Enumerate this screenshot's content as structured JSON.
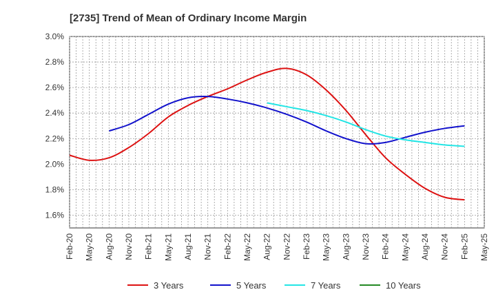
{
  "chart_data": {
    "type": "line",
    "title": "[2735]  Trend of Mean of Ordinary Income Margin",
    "xlabel": "",
    "ylabel": "",
    "ylim": [
      1.5,
      3.0
    ],
    "yticks": [
      "1.6%",
      "1.8%",
      "2.0%",
      "2.2%",
      "2.4%",
      "2.6%",
      "2.8%",
      "3.0%"
    ],
    "ytick_values": [
      1.6,
      1.8,
      2.0,
      2.2,
      2.4,
      2.6,
      2.8,
      3.0
    ],
    "xticks": [
      "Feb-20",
      "May-20",
      "Aug-20",
      "Nov-20",
      "Feb-21",
      "May-21",
      "Aug-21",
      "Nov-21",
      "Feb-22",
      "May-22",
      "Aug-22",
      "Nov-22",
      "Feb-23",
      "May-23",
      "Aug-23",
      "Nov-23",
      "Feb-24",
      "May-24",
      "Aug-24",
      "Nov-24",
      "Feb-25",
      "May-25"
    ],
    "grid": true,
    "legend_position": "bottom",
    "series": [
      {
        "name": "3 Years",
        "color": "#dd1111",
        "x": [
          "Feb-20",
          "May-20",
          "Aug-20",
          "Nov-20",
          "Feb-21",
          "May-21",
          "Aug-21",
          "Nov-21",
          "Feb-22",
          "May-22",
          "Aug-22",
          "Nov-22",
          "Feb-23",
          "May-23",
          "Aug-23",
          "Nov-23",
          "Feb-24",
          "May-24",
          "Aug-24",
          "Nov-24",
          "Feb-25"
        ],
        "values": [
          2.07,
          2.03,
          2.05,
          2.13,
          2.24,
          2.37,
          2.46,
          2.53,
          2.59,
          2.66,
          2.72,
          2.75,
          2.7,
          2.58,
          2.42,
          2.23,
          2.05,
          1.92,
          1.81,
          1.74,
          1.72
        ]
      },
      {
        "name": "5 Years",
        "color": "#1111cc",
        "x": [
          "Aug-20",
          "Nov-20",
          "Feb-21",
          "May-21",
          "Aug-21",
          "Nov-21",
          "Feb-22",
          "May-22",
          "Aug-22",
          "Nov-22",
          "Feb-23",
          "May-23",
          "Aug-23",
          "Nov-23",
          "Feb-24",
          "May-24",
          "Aug-24",
          "Nov-24",
          "Feb-25"
        ],
        "values": [
          2.26,
          2.31,
          2.39,
          2.47,
          2.52,
          2.53,
          2.51,
          2.48,
          2.44,
          2.39,
          2.33,
          2.26,
          2.2,
          2.16,
          2.17,
          2.21,
          2.25,
          2.28,
          2.3
        ]
      },
      {
        "name": "7 Years",
        "color": "#22e5e5",
        "x": [
          "Aug-22",
          "Nov-22",
          "Feb-23",
          "May-23",
          "Aug-23",
          "Nov-23",
          "Feb-24",
          "May-24",
          "Aug-24",
          "Nov-24",
          "Feb-25"
        ],
        "values": [
          2.48,
          2.45,
          2.42,
          2.38,
          2.33,
          2.27,
          2.22,
          2.19,
          2.17,
          2.15,
          2.14
        ]
      },
      {
        "name": "10 Years",
        "color": "#228822",
        "x": [],
        "values": []
      }
    ]
  }
}
